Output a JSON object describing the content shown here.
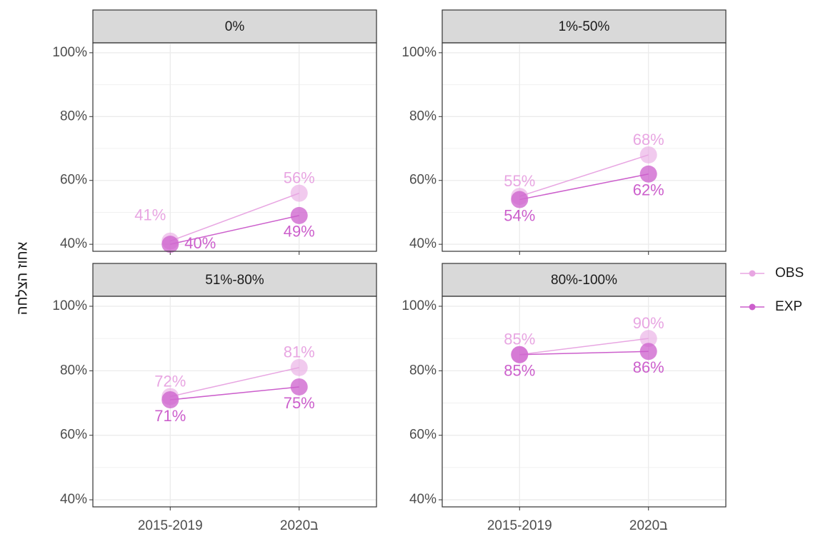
{
  "y_label": "אחוז הצלחה",
  "chart_data": [
    {
      "type": "line",
      "title": "0%",
      "categories": [
        "2015-2019",
        "2020ב"
      ],
      "series": [
        {
          "name": "OBS",
          "color": "#e8a6e2",
          "values": [
            41,
            56
          ],
          "value_labels": [
            "41%",
            "56%"
          ]
        },
        {
          "name": "EXP",
          "color": "#cc5fcc",
          "values": [
            40,
            49
          ],
          "value_labels": [
            "40%",
            "49%"
          ]
        }
      ],
      "ylim": [
        37.8,
        103.1
      ],
      "yticks": [
        {
          "value": 40,
          "label": "40%"
        },
        {
          "value": 60,
          "label": "60%"
        },
        {
          "value": 80,
          "label": "80%"
        },
        {
          "value": 100,
          "label": "100%"
        }
      ],
      "grid": true
    },
    {
      "type": "line",
      "title": "1%-50%",
      "categories": [
        "2015-2019",
        "2020ב"
      ],
      "series": [
        {
          "name": "OBS",
          "color": "#e8a6e2",
          "values": [
            55,
            68
          ],
          "value_labels": [
            "55%",
            "68%"
          ]
        },
        {
          "name": "EXP",
          "color": "#cc5fcc",
          "values": [
            54,
            62
          ],
          "value_labels": [
            "54%",
            "62%"
          ]
        }
      ],
      "ylim": [
        37.8,
        103.1
      ],
      "yticks": [
        {
          "value": 40,
          "label": "40%"
        },
        {
          "value": 60,
          "label": "60%"
        },
        {
          "value": 80,
          "label": "80%"
        },
        {
          "value": 100,
          "label": "100%"
        }
      ],
      "grid": true
    },
    {
      "type": "line",
      "title": "51%-80%",
      "categories": [
        "2015-2019",
        "2020ב"
      ],
      "series": [
        {
          "name": "OBS",
          "color": "#e8a6e2",
          "values": [
            72,
            81
          ],
          "value_labels": [
            "72%",
            "81%"
          ]
        },
        {
          "name": "EXP",
          "color": "#cc5fcc",
          "values": [
            71,
            75
          ],
          "value_labels": [
            "71%",
            "75%"
          ]
        }
      ],
      "ylim": [
        37.8,
        103.1
      ],
      "yticks": [
        {
          "value": 40,
          "label": "40%"
        },
        {
          "value": 60,
          "label": "60%"
        },
        {
          "value": 80,
          "label": "80%"
        },
        {
          "value": 100,
          "label": "100%"
        }
      ],
      "grid": true
    },
    {
      "type": "line",
      "title": "80%-100%",
      "categories": [
        "2015-2019",
        "2020ב"
      ],
      "series": [
        {
          "name": "OBS",
          "color": "#e8a6e2",
          "values": [
            85,
            90
          ],
          "value_labels": [
            "85%",
            "90%"
          ]
        },
        {
          "name": "EXP",
          "color": "#cc5fcc",
          "values": [
            85,
            86
          ],
          "value_labels": [
            "85%",
            "86%"
          ]
        }
      ],
      "ylim": [
        37.8,
        103.1
      ],
      "yticks": [
        {
          "value": 40,
          "label": "40%"
        },
        {
          "value": 60,
          "label": "60%"
        },
        {
          "value": 80,
          "label": "80%"
        },
        {
          "value": 100,
          "label": "100%"
        }
      ],
      "grid": true
    }
  ]
}
